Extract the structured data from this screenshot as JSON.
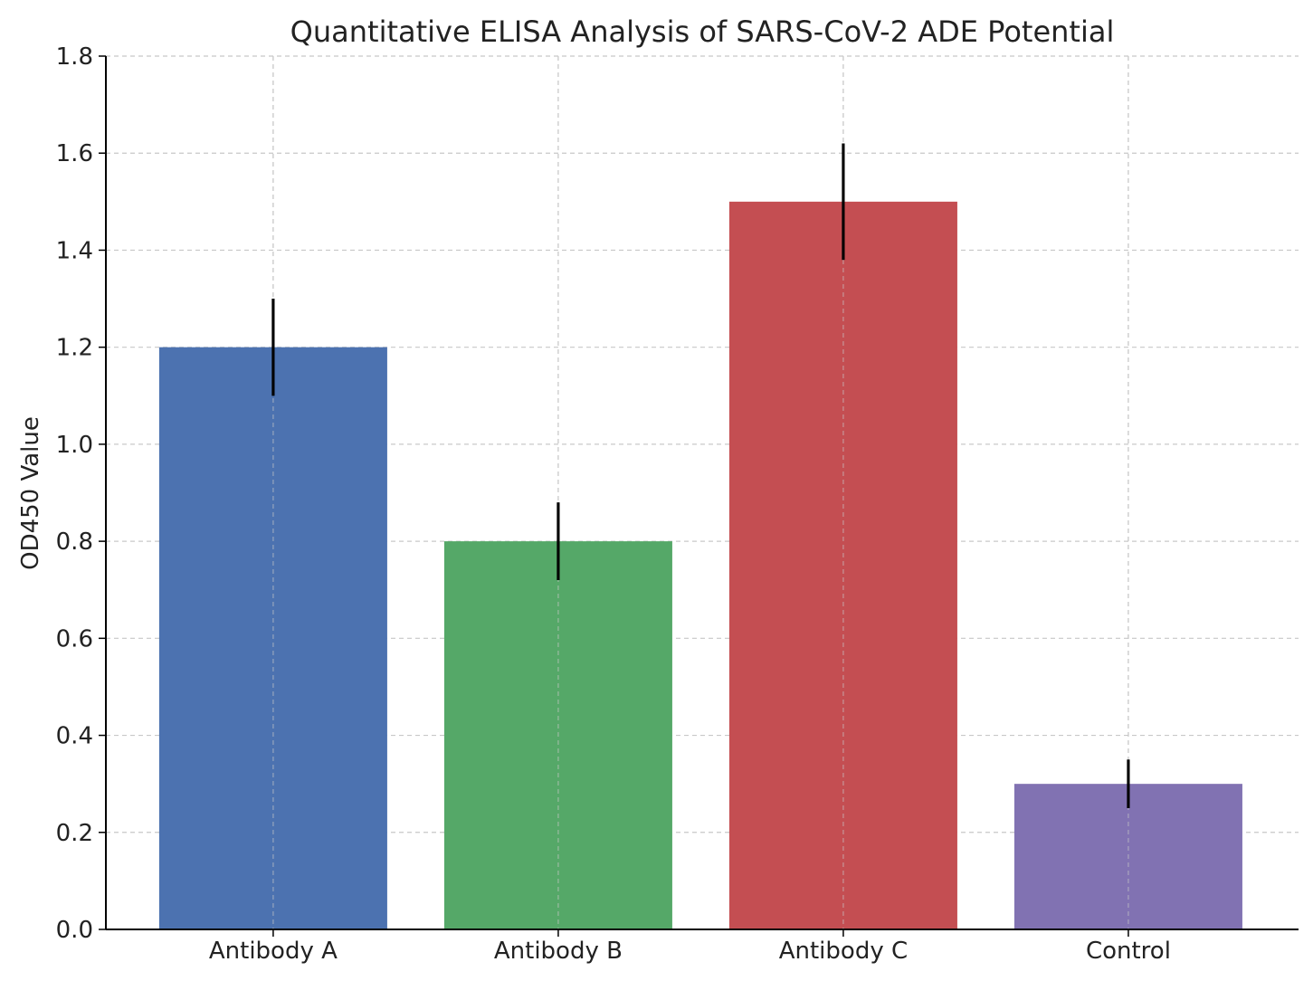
{
  "chart_data": {
    "type": "bar",
    "title": "Quantitative ELISA Analysis of SARS-CoV-2 ADE Potential",
    "xlabel": "",
    "ylabel": "OD450 Value",
    "categories": [
      "Antibody A",
      "Antibody B",
      "Antibody C",
      "Control"
    ],
    "values": [
      1.2,
      0.8,
      1.5,
      0.3
    ],
    "errors": [
      0.1,
      0.08,
      0.12,
      0.05
    ],
    "colors": [
      "#4c72b0",
      "#55a868",
      "#c44e52",
      "#8172b2"
    ],
    "ylim": [
      0,
      1.8
    ],
    "yticks": [
      "0.0",
      "0.2",
      "0.4",
      "0.6",
      "0.8",
      "1.0",
      "1.2",
      "1.4",
      "1.6",
      "1.8"
    ],
    "grid": true,
    "grid_style": "dashed"
  }
}
